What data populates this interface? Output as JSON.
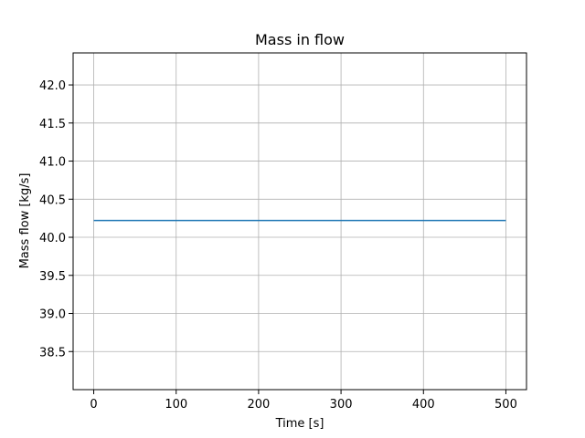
{
  "chart_data": {
    "type": "line",
    "title": "Mass in flow",
    "xlabel": "Time [s]",
    "ylabel": "Mass flow [kg/s]",
    "xlim": [
      -25,
      525
    ],
    "ylim": [
      38.0,
      42.42
    ],
    "xticks": [
      0,
      100,
      200,
      300,
      400,
      500
    ],
    "yticks": [
      38.5,
      39.0,
      39.5,
      40.0,
      40.5,
      41.0,
      41.5,
      42.0
    ],
    "xtick_labels": [
      "0",
      "100",
      "200",
      "300",
      "400",
      "500"
    ],
    "ytick_labels": [
      "38.5",
      "39.0",
      "39.5",
      "40.0",
      "40.5",
      "41.0",
      "41.5",
      "42.0"
    ],
    "grid": true,
    "series": [
      {
        "color": "#1f77b4",
        "x": [
          0,
          500
        ],
        "y": [
          40.22,
          40.22
        ]
      }
    ]
  }
}
